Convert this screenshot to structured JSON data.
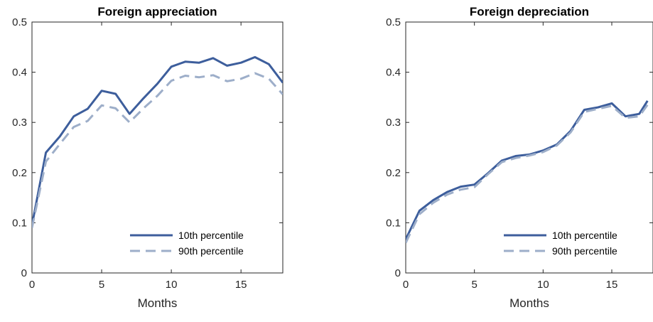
{
  "chart_data": [
    {
      "type": "line",
      "title": "Foreign appreciation",
      "xlabel": "Months",
      "ylabel": "",
      "xlim": [
        0,
        18
      ],
      "ylim": [
        0,
        0.5
      ],
      "xticks": [
        0,
        5,
        10,
        15
      ],
      "yticks": [
        0,
        0.1,
        0.2,
        0.3,
        0.4,
        0.5
      ],
      "ytick_labels": [
        "0",
        "0.1",
        "0.2",
        "0.3",
        "0.4",
        "0.5"
      ],
      "grid": false,
      "legend_position": "bottom-right",
      "x": [
        0,
        1,
        2,
        3,
        4,
        5,
        6,
        7,
        8,
        9,
        10,
        11,
        12,
        13,
        14,
        15,
        16,
        17,
        18
      ],
      "series": [
        {
          "name": "10th percentile",
          "color": "#3d5e9c",
          "dash": "solid",
          "values": [
            0.095,
            0.24,
            0.272,
            0.312,
            0.327,
            0.363,
            0.357,
            0.317,
            0.348,
            0.377,
            0.411,
            0.421,
            0.419,
            0.428,
            0.413,
            0.419,
            0.43,
            0.416,
            0.379
          ]
        },
        {
          "name": "90th percentile",
          "color": "#9daec9",
          "dash": "dashed",
          "values": [
            0.09,
            0.222,
            0.257,
            0.291,
            0.303,
            0.334,
            0.328,
            0.3,
            0.328,
            0.353,
            0.383,
            0.393,
            0.39,
            0.394,
            0.382,
            0.387,
            0.398,
            0.387,
            0.356
          ]
        }
      ]
    },
    {
      "type": "line",
      "title": "Foreign depreciation",
      "xlabel": "Months",
      "ylabel": "",
      "xlim": [
        0,
        18
      ],
      "ylim": [
        0,
        0.5
      ],
      "xticks": [
        0,
        5,
        10,
        15
      ],
      "yticks": [
        0,
        0.1,
        0.2,
        0.3,
        0.4,
        0.5
      ],
      "ytick_labels": [
        "0",
        "0.1",
        "0.2",
        "0.3",
        "0.4",
        "0.5"
      ],
      "grid": false,
      "legend_position": "bottom-right",
      "x": [
        0,
        1,
        2,
        3,
        4,
        5,
        6,
        7,
        8,
        9,
        10,
        11,
        12,
        13,
        14,
        15,
        16,
        17,
        17.6
      ],
      "series": [
        {
          "name": "10th percentile",
          "color": "#3d5e9c",
          "dash": "solid",
          "values": [
            0.067,
            0.124,
            0.145,
            0.161,
            0.172,
            0.176,
            0.199,
            0.224,
            0.233,
            0.236,
            0.244,
            0.256,
            0.283,
            0.325,
            0.33,
            0.338,
            0.312,
            0.317,
            0.343
          ]
        },
        {
          "name": "90th percentile",
          "color": "#9daec9",
          "dash": "dashed",
          "values": [
            0.06,
            0.117,
            0.14,
            0.156,
            0.166,
            0.171,
            0.197,
            0.221,
            0.229,
            0.234,
            0.241,
            0.254,
            0.28,
            0.321,
            0.327,
            0.333,
            0.309,
            0.312,
            0.335
          ]
        }
      ]
    }
  ]
}
